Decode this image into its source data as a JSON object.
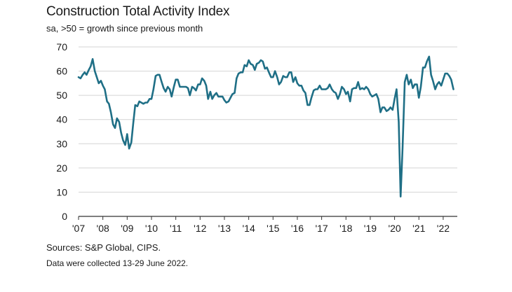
{
  "chart_data": {
    "type": "line",
    "title": "Construction Total Activity Index",
    "subtitle": "sa, >50 = growth since previous month",
    "xlabel": "",
    "ylabel": "",
    "ylim": [
      0,
      70
    ],
    "yticks": [
      0,
      10,
      20,
      30,
      40,
      50,
      60,
      70
    ],
    "xticks": [
      {
        "t": 2007.0,
        "label": "'07"
      },
      {
        "t": 2008.0,
        "label": "'08"
      },
      {
        "t": 2009.0,
        "label": "'09"
      },
      {
        "t": 2010.0,
        "label": "'10"
      },
      {
        "t": 2011.0,
        "label": "'11"
      },
      {
        "t": 2012.0,
        "label": "'12"
      },
      {
        "t": 2013.0,
        "label": "'13"
      },
      {
        "t": 2014.0,
        "label": "'14"
      },
      {
        "t": 2015.0,
        "label": "'15"
      },
      {
        "t": 2016.0,
        "label": "'16"
      },
      {
        "t": 2017.0,
        "label": "'17"
      },
      {
        "t": 2018.0,
        "label": "'18"
      },
      {
        "t": 2019.0,
        "label": "'19"
      },
      {
        "t": 2020.0,
        "label": "'20"
      },
      {
        "t": 2021.0,
        "label": "'21"
      },
      {
        "t": 2022.0,
        "label": "'22"
      }
    ],
    "xlim": [
      2007.0,
      2022.58
    ],
    "grid": "horizontal",
    "series": [
      {
        "name": "Construction Total Activity Index",
        "color": "#1f6f86",
        "points": [
          [
            2007.0,
            57.5
          ],
          [
            2007.08,
            57.0
          ],
          [
            2007.17,
            58.5
          ],
          [
            2007.25,
            59.5
          ],
          [
            2007.33,
            58.5
          ],
          [
            2007.42,
            60.5
          ],
          [
            2007.5,
            62.0
          ],
          [
            2007.58,
            65.0
          ],
          [
            2007.67,
            60.0
          ],
          [
            2007.75,
            57.5
          ],
          [
            2007.83,
            55.0
          ],
          [
            2007.92,
            56.0
          ],
          [
            2008.0,
            54.0
          ],
          [
            2008.08,
            52.5
          ],
          [
            2008.17,
            47.5
          ],
          [
            2008.25,
            46.5
          ],
          [
            2008.33,
            43.0
          ],
          [
            2008.42,
            38.0
          ],
          [
            2008.5,
            36.5
          ],
          [
            2008.58,
            40.5
          ],
          [
            2008.67,
            39.0
          ],
          [
            2008.75,
            34.5
          ],
          [
            2008.83,
            31.5
          ],
          [
            2008.92,
            29.5
          ],
          [
            2009.0,
            34.0
          ],
          [
            2009.08,
            28.0
          ],
          [
            2009.17,
            30.5
          ],
          [
            2009.25,
            38.5
          ],
          [
            2009.33,
            46.0
          ],
          [
            2009.42,
            45.5
          ],
          [
            2009.5,
            47.5
          ],
          [
            2009.58,
            47.0
          ],
          [
            2009.67,
            46.5
          ],
          [
            2009.75,
            47.0
          ],
          [
            2009.83,
            47.0
          ],
          [
            2009.92,
            48.5
          ],
          [
            2010.0,
            48.5
          ],
          [
            2010.08,
            52.5
          ],
          [
            2010.17,
            58.0
          ],
          [
            2010.25,
            58.5
          ],
          [
            2010.33,
            58.5
          ],
          [
            2010.42,
            55.5
          ],
          [
            2010.5,
            53.0
          ],
          [
            2010.58,
            51.5
          ],
          [
            2010.67,
            53.5
          ],
          [
            2010.75,
            52.5
          ],
          [
            2010.83,
            49.5
          ],
          [
            2010.92,
            53.5
          ],
          [
            2011.0,
            56.5
          ],
          [
            2011.08,
            56.5
          ],
          [
            2011.17,
            53.5
          ],
          [
            2011.25,
            53.5
          ],
          [
            2011.33,
            53.5
          ],
          [
            2011.42,
            53.5
          ],
          [
            2011.5,
            53.0
          ],
          [
            2011.58,
            50.0
          ],
          [
            2011.67,
            53.5
          ],
          [
            2011.75,
            53.0
          ],
          [
            2011.83,
            52.0
          ],
          [
            2011.92,
            54.5
          ],
          [
            2012.0,
            54.5
          ],
          [
            2012.08,
            57.0
          ],
          [
            2012.17,
            56.0
          ],
          [
            2012.25,
            54.0
          ],
          [
            2012.33,
            48.5
          ],
          [
            2012.42,
            51.5
          ],
          [
            2012.5,
            48.5
          ],
          [
            2012.58,
            50.0
          ],
          [
            2012.67,
            51.0
          ],
          [
            2012.75,
            49.5
          ],
          [
            2012.83,
            49.5
          ],
          [
            2012.92,
            49.5
          ],
          [
            2013.0,
            48.0
          ],
          [
            2013.08,
            47.0
          ],
          [
            2013.17,
            47.5
          ],
          [
            2013.25,
            49.0
          ],
          [
            2013.33,
            50.5
          ],
          [
            2013.42,
            51.0
          ],
          [
            2013.5,
            57.0
          ],
          [
            2013.58,
            59.0
          ],
          [
            2013.67,
            59.5
          ],
          [
            2013.75,
            59.5
          ],
          [
            2013.83,
            62.5
          ],
          [
            2013.92,
            62.0
          ],
          [
            2014.0,
            64.5
          ],
          [
            2014.08,
            63.0
          ],
          [
            2014.17,
            62.5
          ],
          [
            2014.25,
            60.5
          ],
          [
            2014.33,
            63.0
          ],
          [
            2014.42,
            63.5
          ],
          [
            2014.5,
            64.5
          ],
          [
            2014.58,
            64.0
          ],
          [
            2014.67,
            61.0
          ],
          [
            2014.75,
            61.5
          ],
          [
            2014.83,
            59.5
          ],
          [
            2014.92,
            57.5
          ],
          [
            2015.0,
            57.5
          ],
          [
            2015.08,
            60.0
          ],
          [
            2015.17,
            57.5
          ],
          [
            2015.25,
            54.5
          ],
          [
            2015.33,
            55.5
          ],
          [
            2015.42,
            58.0
          ],
          [
            2015.5,
            57.5
          ],
          [
            2015.58,
            57.5
          ],
          [
            2015.67,
            59.5
          ],
          [
            2015.75,
            59.5
          ],
          [
            2015.83,
            55.5
          ],
          [
            2015.92,
            57.5
          ],
          [
            2016.0,
            55.0
          ],
          [
            2016.08,
            54.0
          ],
          [
            2016.17,
            54.0
          ],
          [
            2016.25,
            52.0
          ],
          [
            2016.33,
            51.0
          ],
          [
            2016.42,
            46.0
          ],
          [
            2016.5,
            46.0
          ],
          [
            2016.58,
            49.0
          ],
          [
            2016.67,
            52.0
          ],
          [
            2016.75,
            52.5
          ],
          [
            2016.83,
            52.5
          ],
          [
            2016.92,
            54.0
          ],
          [
            2017.0,
            52.5
          ],
          [
            2017.08,
            52.5
          ],
          [
            2017.17,
            52.5
          ],
          [
            2017.25,
            53.0
          ],
          [
            2017.33,
            54.5
          ],
          [
            2017.42,
            52.5
          ],
          [
            2017.5,
            51.5
          ],
          [
            2017.58,
            51.0
          ],
          [
            2017.67,
            48.5
          ],
          [
            2017.75,
            50.5
          ],
          [
            2017.83,
            53.5
          ],
          [
            2017.92,
            52.5
          ],
          [
            2018.0,
            50.5
          ],
          [
            2018.08,
            51.5
          ],
          [
            2018.17,
            47.5
          ],
          [
            2018.25,
            52.5
          ],
          [
            2018.33,
            53.0
          ],
          [
            2018.42,
            53.0
          ],
          [
            2018.5,
            55.5
          ],
          [
            2018.58,
            52.5
          ],
          [
            2018.67,
            53.0
          ],
          [
            2018.75,
            52.5
          ],
          [
            2018.83,
            53.5
          ],
          [
            2018.92,
            52.5
          ],
          [
            2019.0,
            50.5
          ],
          [
            2019.08,
            49.5
          ],
          [
            2019.17,
            50.0
          ],
          [
            2019.25,
            50.5
          ],
          [
            2019.33,
            48.5
          ],
          [
            2019.42,
            43.0
          ],
          [
            2019.5,
            45.0
          ],
          [
            2019.58,
            45.0
          ],
          [
            2019.67,
            43.5
          ],
          [
            2019.75,
            44.0
          ],
          [
            2019.83,
            45.0
          ],
          [
            2019.92,
            44.0
          ],
          [
            2020.0,
            48.5
          ],
          [
            2020.08,
            52.5
          ],
          [
            2020.17,
            39.0
          ],
          [
            2020.25,
            8.2
          ],
          [
            2020.33,
            28.5
          ],
          [
            2020.42,
            55.5
          ],
          [
            2020.5,
            58.5
          ],
          [
            2020.58,
            54.5
          ],
          [
            2020.67,
            56.5
          ],
          [
            2020.75,
            53.0
          ],
          [
            2020.83,
            54.5
          ],
          [
            2020.92,
            54.5
          ],
          [
            2021.0,
            49.0
          ],
          [
            2021.08,
            53.5
          ],
          [
            2021.17,
            61.5
          ],
          [
            2021.25,
            61.5
          ],
          [
            2021.33,
            64.0
          ],
          [
            2021.42,
            66.0
          ],
          [
            2021.5,
            58.5
          ],
          [
            2021.58,
            56.0
          ],
          [
            2021.67,
            52.5
          ],
          [
            2021.75,
            54.5
          ],
          [
            2021.83,
            55.5
          ],
          [
            2021.92,
            54.0
          ],
          [
            2022.0,
            56.5
          ],
          [
            2022.08,
            59.0
          ],
          [
            2022.17,
            59.0
          ],
          [
            2022.25,
            58.0
          ],
          [
            2022.33,
            56.5
          ],
          [
            2022.42,
            52.5
          ]
        ]
      }
    ]
  },
  "footer": {
    "source": "Sources: S&P Global, CIPS.",
    "note": "Data were collected 13-29 June 2022."
  }
}
